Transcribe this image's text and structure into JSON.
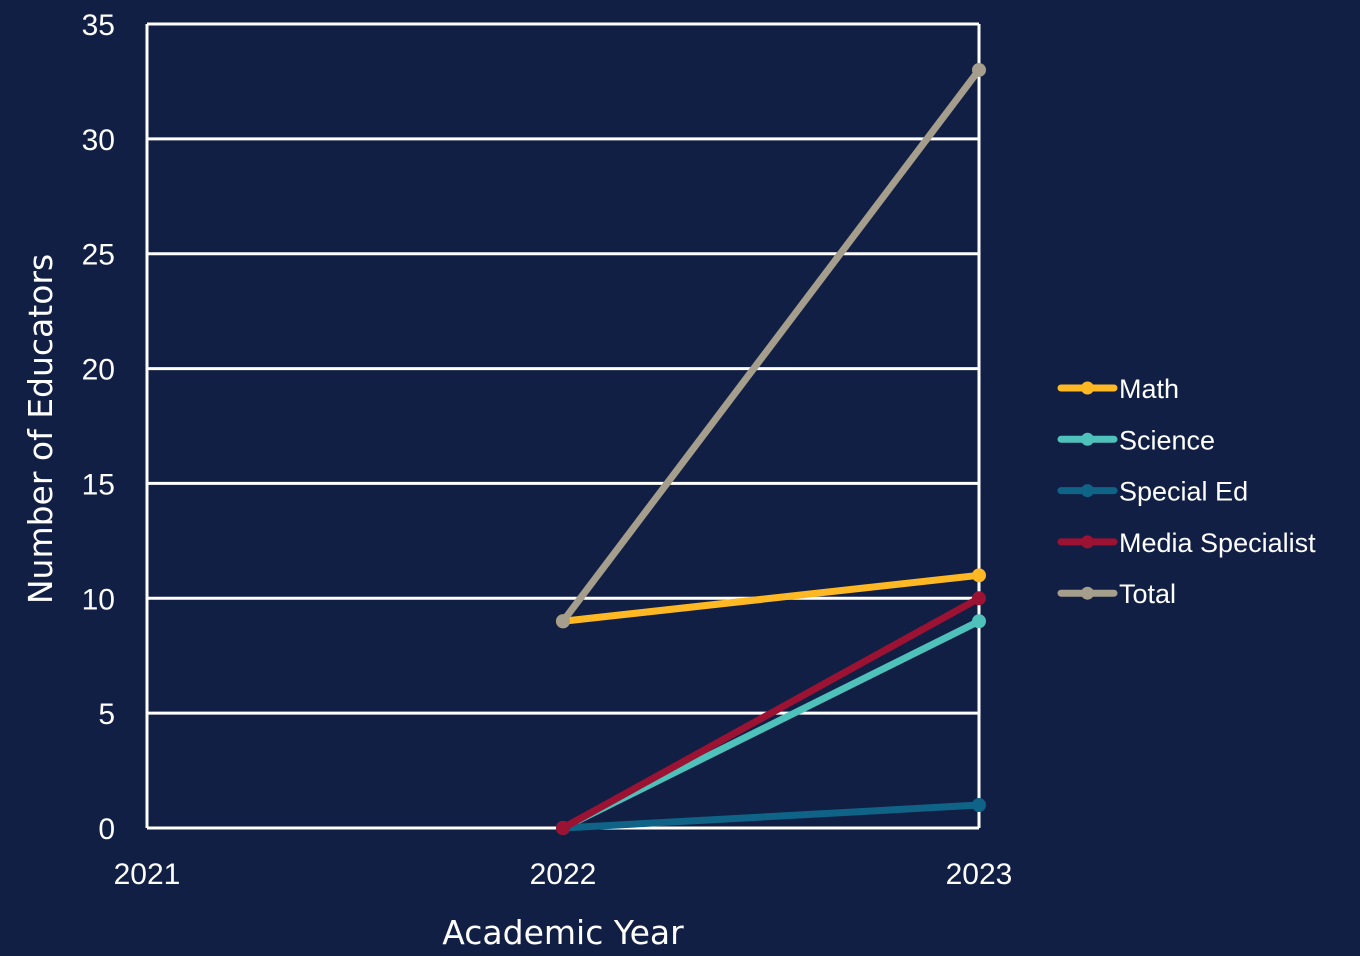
{
  "chart_data": {
    "type": "line",
    "title": "",
    "xlabel": "Academic Year",
    "ylabel": "Number of Educators",
    "x": [
      2021,
      2022,
      2023
    ],
    "x_tick_labels": [
      "2021",
      "2022",
      "2023"
    ],
    "xlim": [
      2021,
      2023
    ],
    "ylim": [
      0,
      35
    ],
    "y_ticks": [
      0,
      5,
      10,
      15,
      20,
      25,
      30,
      35
    ],
    "y_tick_labels": [
      "0",
      "5",
      "10",
      "15",
      "20",
      "25",
      "30",
      "35"
    ],
    "grid": true,
    "legend_position": "right",
    "series": [
      {
        "name": "Math",
        "color": "#fdb824",
        "x": [
          2022,
          2023
        ],
        "values": [
          9,
          11
        ]
      },
      {
        "name": "Science",
        "color": "#4fc1bb",
        "x": [
          2022,
          2023
        ],
        "values": [
          0,
          9
        ]
      },
      {
        "name": "Special Ed",
        "color": "#0f6387",
        "x": [
          2022,
          2023
        ],
        "values": [
          0,
          1
        ]
      },
      {
        "name": "Media Specialist",
        "color": "#9b1233",
        "x": [
          2022,
          2023
        ],
        "values": [
          0,
          10
        ]
      },
      {
        "name": "Total",
        "color": "#a59e8c",
        "x": [
          2022,
          2023
        ],
        "values": [
          9,
          33
        ]
      }
    ]
  },
  "colors": {
    "background": "#121f45",
    "axis": "#ffffff",
    "gridline": "#ffffff",
    "text": "#ffffff"
  }
}
